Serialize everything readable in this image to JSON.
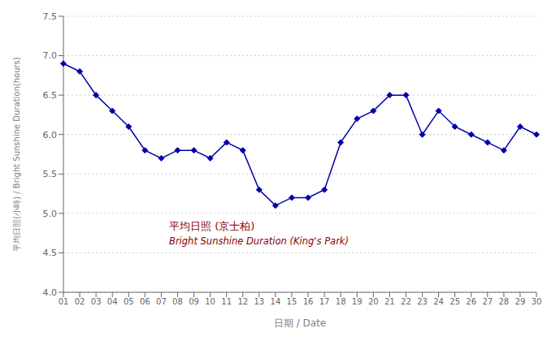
{
  "chart_data": {
    "type": "line",
    "categories": [
      "01",
      "02",
      "03",
      "04",
      "05",
      "06",
      "07",
      "08",
      "09",
      "10",
      "11",
      "12",
      "13",
      "14",
      "15",
      "16",
      "17",
      "18",
      "19",
      "20",
      "21",
      "22",
      "23",
      "24",
      "25",
      "26",
      "27",
      "28",
      "29",
      "30"
    ],
    "values": [
      6.9,
      6.8,
      6.5,
      6.3,
      6.1,
      5.8,
      5.7,
      5.8,
      5.8,
      5.7,
      5.9,
      5.8,
      5.3,
      5.1,
      5.2,
      5.2,
      5.3,
      5.9,
      6.2,
      6.3,
      6.5,
      6.5,
      6.0,
      6.3,
      6.1,
      6.0,
      5.9,
      5.8,
      6.1,
      6.0
    ],
    "color": "#0000AA",
    "marker": "diamond",
    "ylim": [
      4.0,
      7.5
    ],
    "yticks": [
      {
        "value": 4,
        "label": "4.0"
      },
      4.5,
      {
        "value": 5,
        "label": "5.0"
      },
      5.5,
      {
        "value": 6,
        "label": "6.0"
      },
      6.5,
      {
        "value": 7,
        "label": "7.0"
      },
      7.5
    ],
    "grid": true,
    "xlabel": "日期 / Date",
    "ylabel": "平均日照(小時) / Bright Sunshine Duration(hours)",
    "annotations": [
      {
        "text": "平均日照 (京士柏)",
        "color": "#8B0000"
      },
      {
        "text": "Bright Sunshine Duration (King's Park)",
        "color": "#8B0000"
      }
    ]
  }
}
